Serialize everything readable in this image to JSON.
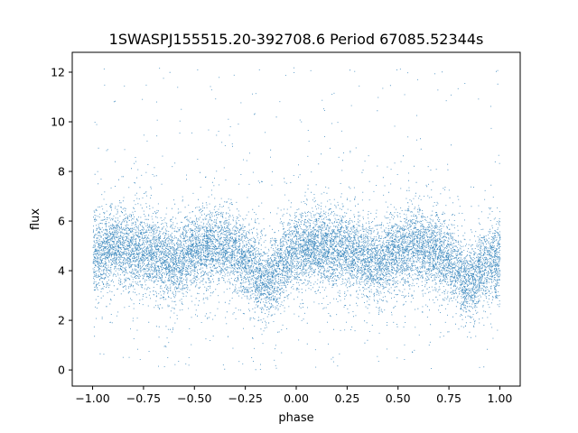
{
  "chart_data": {
    "type": "scatter",
    "title": "1SWASPJ155515.20-392708.6 Period 67085.52344s",
    "xlabel": "phase",
    "ylabel": "flux",
    "xlim": [
      -1.1,
      1.1
    ],
    "ylim": [
      -0.65,
      12.8
    ],
    "x_ticks": [
      -1.0,
      -0.75,
      -0.5,
      -0.25,
      0.0,
      0.25,
      0.5,
      0.75,
      1.0
    ],
    "x_tick_labels": [
      "−1.00",
      "−0.75",
      "−0.50",
      "−0.25",
      "0.00",
      "0.25",
      "0.50",
      "0.75",
      "1.00"
    ],
    "y_ticks": [
      0,
      2,
      4,
      6,
      8,
      10,
      12
    ],
    "y_tick_labels": [
      "0",
      "2",
      "4",
      "6",
      "8",
      "10",
      "12"
    ],
    "grid": false,
    "legend": "none",
    "marker_color": "#1f77b4",
    "series": [
      {
        "phase_range": [
          -1.0,
          1.0
        ],
        "point_count_estimate": 30000,
        "light_curve_profile": {
          "phase": [
            -1.0,
            -0.9,
            -0.75,
            -0.6,
            -0.5,
            -0.4,
            -0.3,
            -0.2,
            -0.15,
            -0.1,
            0.0,
            0.1,
            0.25,
            0.4,
            0.5,
            0.6,
            0.7,
            0.8,
            0.85,
            0.9,
            1.0
          ],
          "median_flux": [
            4.6,
            5.0,
            4.8,
            4.3,
            4.8,
            5.0,
            4.8,
            4.0,
            3.5,
            4.0,
            4.9,
            5.0,
            4.8,
            4.3,
            4.8,
            5.0,
            4.8,
            4.0,
            3.5,
            4.0,
            4.6
          ]
        },
        "flux_range": [
          0,
          12.2
        ]
      }
    ]
  }
}
